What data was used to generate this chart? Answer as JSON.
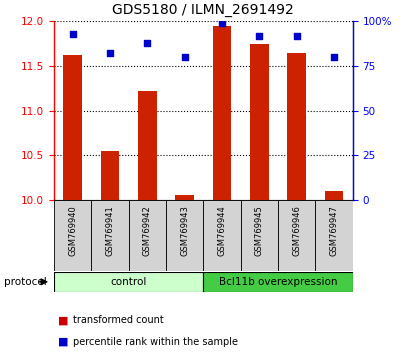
{
  "title": "GDS5180 / ILMN_2691492",
  "samples": [
    "GSM769940",
    "GSM769941",
    "GSM769942",
    "GSM769943",
    "GSM769944",
    "GSM769945",
    "GSM769946",
    "GSM769947"
  ],
  "red_values": [
    11.62,
    10.55,
    11.22,
    10.06,
    11.95,
    11.75,
    11.65,
    10.1
  ],
  "blue_values": [
    93,
    82,
    88,
    80,
    99,
    92,
    92,
    80
  ],
  "ylim_left": [
    10,
    12
  ],
  "ylim_right": [
    0,
    100
  ],
  "yticks_left": [
    10,
    10.5,
    11,
    11.5,
    12
  ],
  "yticks_right": [
    0,
    25,
    50,
    75,
    100
  ],
  "ytick_labels_right": [
    "0",
    "25",
    "50",
    "75",
    "100%"
  ],
  "groups": [
    {
      "label": "control",
      "start": 0,
      "end": 4,
      "color": "#ccffcc"
    },
    {
      "label": "Bcl11b overexpression",
      "start": 4,
      "end": 8,
      "color": "#44cc44"
    }
  ],
  "protocol_label": "protocol",
  "legend_items": [
    {
      "color": "#cc0000",
      "label": "transformed count"
    },
    {
      "color": "#0000cc",
      "label": "percentile rank within the sample"
    }
  ],
  "bar_color": "#cc2200",
  "dot_color": "#0000cc",
  "bar_width": 0.5,
  "title_fontsize": 10
}
